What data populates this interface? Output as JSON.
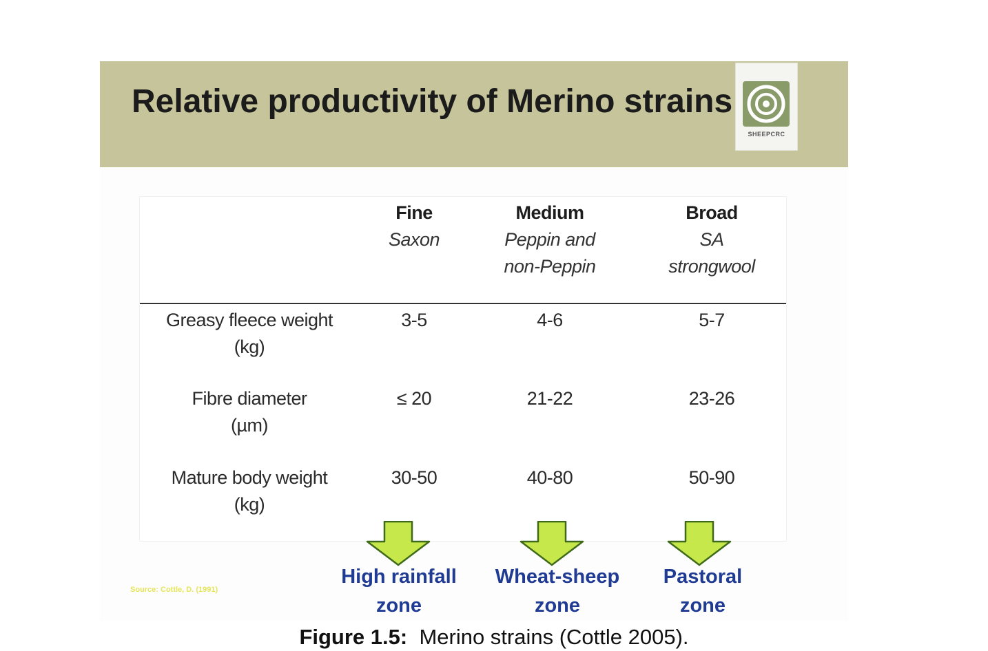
{
  "slide": {
    "title": "Relative productivity of Merino strains",
    "logo_text": "SHEEPCRC"
  },
  "table": {
    "columns": [
      {
        "name": "Fine",
        "sub": [
          "Saxon"
        ]
      },
      {
        "name": "Medium",
        "sub": [
          "Peppin and",
          "non-Peppin"
        ]
      },
      {
        "name": "Broad",
        "sub": [
          "SA",
          "strongwool"
        ]
      }
    ],
    "rows": [
      {
        "label": [
          "Greasy fleece weight",
          "(kg)"
        ],
        "values": [
          "3-5",
          "4-6",
          "5-7"
        ]
      },
      {
        "label": [
          "Fibre diameter",
          "(µm)"
        ],
        "values": [
          "≤ 20",
          "21-22",
          "23-26"
        ]
      },
      {
        "label": [
          "Mature body weight",
          "(kg)"
        ],
        "values": [
          "30-50",
          "40-80",
          "50-90"
        ]
      }
    ]
  },
  "zones": [
    [
      "High rainfall",
      "zone"
    ],
    [
      "Wheat-sheep",
      "zone"
    ],
    [
      "Pastoral",
      "zone"
    ]
  ],
  "source_note": "Source: Cottle, D. (1991)",
  "caption": {
    "label": "Figure 1.5:",
    "text": "Merino strains (Cottle 2005)."
  },
  "colors": {
    "title_band": "#c6c49a",
    "arrow_fill": "#c6e84a",
    "zone_text": "#1f3b93"
  }
}
